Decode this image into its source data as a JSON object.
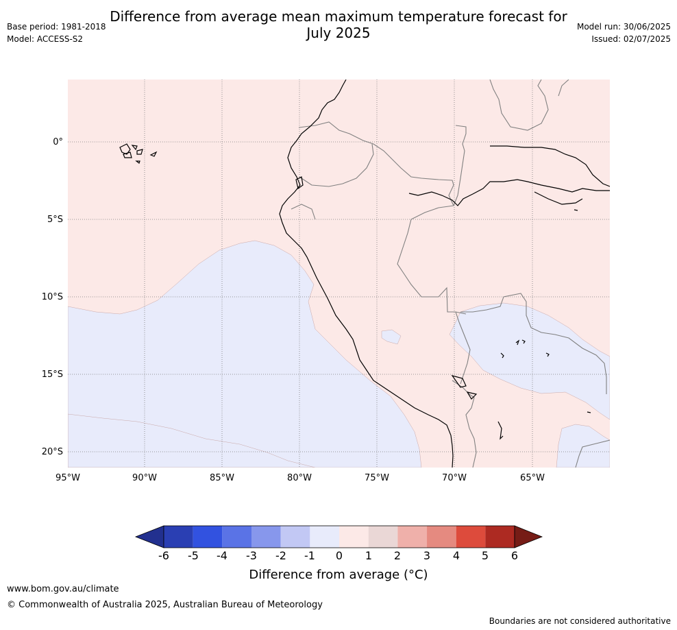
{
  "title": {
    "line1": "Difference from average mean maximum temperature forecast for",
    "line2": "July 2025"
  },
  "meta_left": {
    "base_period": "Base period: 1981-2018",
    "model": "Model: ACCESS-S2"
  },
  "meta_right": {
    "model_run": "Model run: 30/06/2025",
    "issued": "Issued: 02/07/2025"
  },
  "map": {
    "lat_labels": [
      "0°",
      "5°S",
      "10°S",
      "15°S",
      "20°S"
    ],
    "lon_labels": [
      "95°W",
      "90°W",
      "85°W",
      "80°W",
      "75°W",
      "70°W",
      "65°W"
    ],
    "colors": {
      "warm_0_1": "#fce9e7",
      "cool_m1_0": "#e8ebfb",
      "coast": "#000000",
      "border": "#808080",
      "grid": "#666666"
    }
  },
  "colorbar": {
    "title": "Difference from average (°C)",
    "ticks": [
      "-6",
      "-5",
      "-4",
      "-3",
      "-2",
      "-1",
      "0",
      "1",
      "2",
      "3",
      "4",
      "5",
      "6"
    ],
    "colors": [
      "#22308f",
      "#2a3fb3",
      "#3252e0",
      "#5a73e6",
      "#8797ec",
      "#c2c8f4",
      "#e8ebfb",
      "#fce9e7",
      "#ead7d6",
      "#efb0aa",
      "#e58a80",
      "#dd4b3c",
      "#ad2a22",
      "#761c16"
    ]
  },
  "footer": {
    "url": "www.bom.gov.au/climate",
    "copyright": "© Commonwealth of Australia 2025, Australian Bureau of Meteorology",
    "note": "Boundaries are not considered authoritative"
  }
}
